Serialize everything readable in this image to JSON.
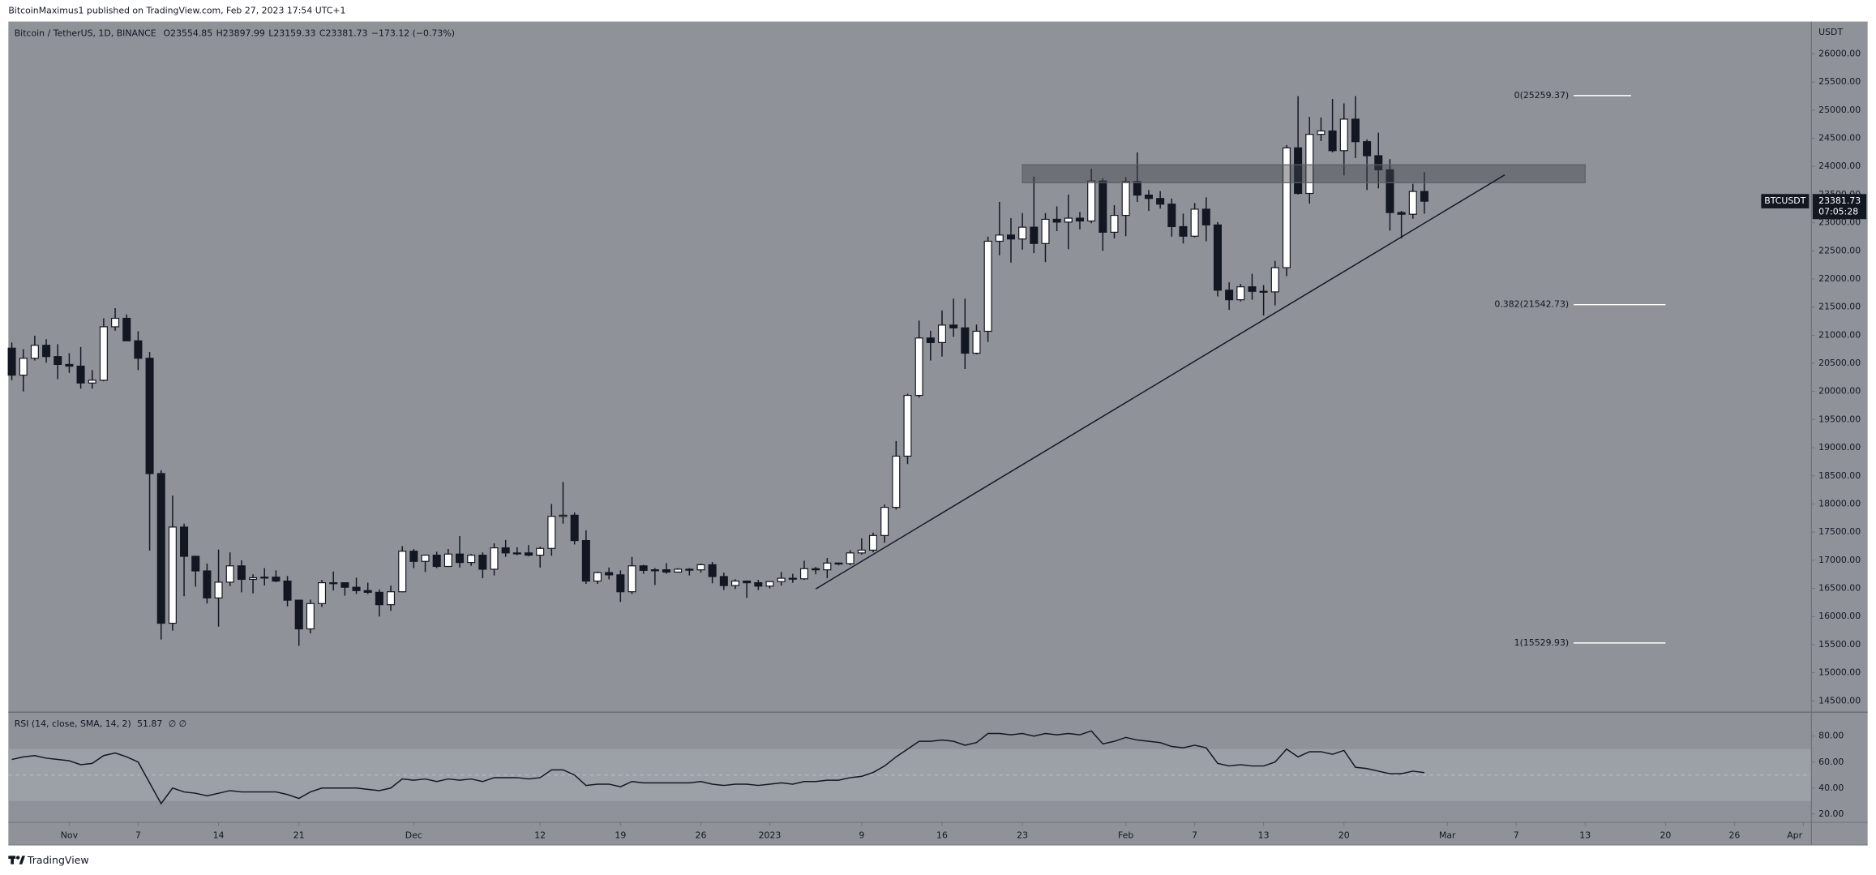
{
  "publish_line": "BitcoinMaximus1 published on TradingView.com, Feb 27, 2023 17:54 UTC+1",
  "footer_brand": "TradingView",
  "chart_data": [
    {
      "type": "candlestick",
      "title": "Bitcoin / TetherUS, 1D, BINANCE",
      "ohlc_labels": [
        "O",
        "H",
        "L",
        "C"
      ],
      "change_label": "−173.12 (−0.73%)",
      "symbol": "BTCUSDT",
      "countdown": "07:05:28",
      "y_axis_label": "USDT",
      "up_color": "#ffffff",
      "down_color": "#131722",
      "open": [
        20770,
        20290,
        20590,
        20820,
        20620,
        20480,
        20450,
        20150,
        20200,
        21150,
        21300,
        20900,
        20590,
        18540,
        15880,
        17590,
        17070,
        16810,
        16330,
        16610,
        16900,
        16660,
        16690,
        16700,
        16630,
        16290,
        15780,
        16230,
        16600,
        16600,
        16520,
        16460,
        16430,
        16210,
        16440,
        17160,
        16980,
        17090,
        16890,
        17110,
        16960,
        17090,
        16840,
        17220,
        17130,
        17130,
        17090,
        17210,
        17780,
        17800,
        17350,
        16630,
        16780,
        16740,
        16440,
        16900,
        16820,
        16830,
        16790,
        16840,
        16830,
        16920,
        16710,
        16550,
        16630,
        16600,
        16540,
        16620,
        16680,
        16670,
        16850,
        16830,
        16950,
        16940,
        17130,
        17180,
        17440,
        17940,
        18850,
        19930,
        20950,
        20870,
        21180,
        21130,
        20680,
        21070,
        22670,
        22780,
        22710,
        22920,
        22630,
        23060,
        23010,
        23080,
        23030,
        23740,
        22830,
        23130,
        23730,
        23490,
        23430,
        23330,
        22930,
        22760,
        23240,
        22960,
        21800,
        21630,
        21860,
        21780,
        21770,
        22200,
        24330,
        23520,
        24570,
        24630,
        24280,
        24840,
        24440,
        24190,
        23940,
        23180,
        23150,
        23554.85
      ],
      "high": [
        20870,
        20750,
        20990,
        20930,
        20840,
        20680,
        20790,
        20380,
        21300,
        21480,
        21370,
        21070,
        20700,
        18600,
        18150,
        17650,
        17080,
        16940,
        17190,
        17140,
        17000,
        16750,
        16860,
        16820,
        16720,
        16300,
        16300,
        16650,
        16800,
        16600,
        16690,
        16600,
        16480,
        16550,
        17250,
        17200,
        17100,
        17150,
        17200,
        17430,
        17110,
        17140,
        17300,
        17360,
        17230,
        17270,
        17240,
        18000,
        18390,
        17850,
        17530,
        16800,
        16870,
        16820,
        17060,
        16920,
        16860,
        16950,
        16860,
        16860,
        16940,
        16970,
        16780,
        16660,
        16640,
        16650,
        16630,
        16790,
        16760,
        16990,
        16880,
        17040,
        16960,
        17180,
        17390,
        17490,
        17990,
        19120,
        19960,
        21260,
        21080,
        21440,
        21650,
        21650,
        21190,
        22750,
        23370,
        23080,
        23170,
        23820,
        23170,
        23290,
        23500,
        23190,
        23960,
        23790,
        23310,
        23810,
        24250,
        23580,
        23560,
        23430,
        23160,
        23350,
        23450,
        23010,
        21940,
        21910,
        22090,
        21890,
        22320,
        24380,
        25250,
        24880,
        24870,
        25200,
        25120,
        25250,
        24480,
        24600,
        24130,
        23210,
        23690,
        23897.99
      ],
      "low": [
        20200,
        20000,
        20550,
        20510,
        20220,
        20330,
        20050,
        20050,
        20180,
        21080,
        20900,
        20380,
        17170,
        15590,
        15750,
        16360,
        16530,
        16230,
        15820,
        16540,
        16430,
        16410,
        16550,
        16610,
        16180,
        15480,
        15700,
        16170,
        16460,
        16370,
        16400,
        16400,
        16000,
        16100,
        16430,
        16860,
        16790,
        16860,
        16880,
        16870,
        16900,
        16680,
        16730,
        17060,
        17090,
        17070,
        16870,
        17080,
        17650,
        17280,
        16580,
        16580,
        16660,
        16260,
        16400,
        16760,
        16560,
        16760,
        16790,
        16730,
        16780,
        16590,
        16470,
        16490,
        16330,
        16470,
        16500,
        16550,
        16600,
        16650,
        16750,
        16680,
        16910,
        16910,
        17100,
        17140,
        17310,
        17900,
        18710,
        19890,
        20550,
        20620,
        20970,
        20400,
        20660,
        20880,
        22420,
        22290,
        22520,
        22460,
        22300,
        22850,
        22530,
        22880,
        22990,
        22500,
        22720,
        22760,
        23370,
        23210,
        23250,
        22750,
        22630,
        22740,
        22670,
        21690,
        21450,
        21600,
        21630,
        21350,
        21530,
        22050,
        23500,
        23340,
        24450,
        24250,
        23840,
        24150,
        23580,
        23610,
        22860,
        22720,
        23070,
        23159.33
      ],
      "close": [
        20290,
        20590,
        20820,
        20620,
        20480,
        20450,
        20150,
        20200,
        21150,
        21300,
        20900,
        20590,
        18540,
        15880,
        17590,
        17070,
        16810,
        16330,
        16610,
        16900,
        16660,
        16690,
        16700,
        16630,
        16290,
        15780,
        16230,
        16600,
        16600,
        16520,
        16460,
        16430,
        16210,
        16440,
        17160,
        16980,
        17090,
        16890,
        17110,
        16960,
        17090,
        16840,
        17220,
        17130,
        17130,
        17090,
        17210,
        17780,
        17800,
        17350,
        16630,
        16780,
        16740,
        16440,
        16900,
        16820,
        16830,
        16790,
        16840,
        16830,
        16920,
        16710,
        16550,
        16630,
        16600,
        16540,
        16620,
        16680,
        16670,
        16850,
        16830,
        16950,
        16940,
        17130,
        17180,
        17440,
        17940,
        18850,
        19930,
        20950,
        20870,
        21180,
        21130,
        20680,
        21070,
        22670,
        22780,
        22710,
        22920,
        22630,
        23060,
        23010,
        23080,
        23030,
        23740,
        22830,
        23130,
        23730,
        23490,
        23430,
        23330,
        22930,
        22760,
        23240,
        22960,
        21800,
        21630,
        21860,
        21780,
        21770,
        22200,
        24330,
        23520,
        24570,
        24630,
        24280,
        24840,
        24440,
        24190,
        23940,
        23180,
        23150,
        23554.85,
        23381.73
      ],
      "xlim": [
        -0.3,
        156.7
      ],
      "xticks": [
        {
          "value": 5,
          "label": "Nov"
        },
        {
          "value": 11,
          "label": "7"
        },
        {
          "value": 18,
          "label": "14"
        },
        {
          "value": 25,
          "label": "21"
        },
        {
          "value": 35,
          "label": "Dec"
        },
        {
          "value": 46,
          "label": "12"
        },
        {
          "value": 53,
          "label": "19"
        },
        {
          "value": 60,
          "label": "26"
        },
        {
          "value": 66,
          "label": "2023"
        },
        {
          "value": 74,
          "label": "9"
        },
        {
          "value": 81,
          "label": "16"
        },
        {
          "value": 88,
          "label": "23"
        },
        {
          "value": 97,
          "label": "Feb"
        },
        {
          "value": 103,
          "label": "7"
        },
        {
          "value": 109,
          "label": "13"
        },
        {
          "value": 116,
          "label": "20"
        },
        {
          "value": 125,
          "label": "Mar"
        },
        {
          "value": 131,
          "label": "7"
        },
        {
          "value": 137,
          "label": "13"
        },
        {
          "value": 144,
          "label": "20"
        },
        {
          "value": 150,
          "label": "26"
        },
        {
          "value": 156,
          "label": "Apr"
        }
      ],
      "ylim": [
        14320,
        26575
      ],
      "yticks": [
        {
          "value": 14500,
          "label": "14500.00"
        },
        {
          "value": 15000,
          "label": "15000.00"
        },
        {
          "value": 15500,
          "label": "15500.00"
        },
        {
          "value": 16000,
          "label": "16000.00"
        },
        {
          "value": 16500,
          "label": "16500.00"
        },
        {
          "value": 17000,
          "label": "17000.00"
        },
        {
          "value": 17500,
          "label": "17500.00"
        },
        {
          "value": 18000,
          "label": "18000.00"
        },
        {
          "value": 18500,
          "label": "18500.00"
        },
        {
          "value": 19000,
          "label": "19000.00"
        },
        {
          "value": 19500,
          "label": "19500.00"
        },
        {
          "value": 20000,
          "label": "20000.00"
        },
        {
          "value": 20500,
          "label": "20500.00"
        },
        {
          "value": 21000,
          "label": "21000.00"
        },
        {
          "value": 21500,
          "label": "21500.00"
        },
        {
          "value": 22000,
          "label": "22000.00"
        },
        {
          "value": 22500,
          "label": "22500.00"
        },
        {
          "value": 23000,
          "label": "23000.00"
        },
        {
          "value": 23500,
          "label": "23500.00"
        },
        {
          "value": 24000,
          "label": "24000.00"
        },
        {
          "value": 24500,
          "label": "24500.00"
        },
        {
          "value": 25000,
          "label": "25000.00"
        },
        {
          "value": 25500,
          "label": "25500.00"
        },
        {
          "value": 26000,
          "label": "26000.00"
        }
      ],
      "resistance_zone": {
        "x": [
          88,
          137
        ],
        "y": [
          23710,
          24030
        ]
      },
      "trendline": {
        "x": [
          70,
          130
        ],
        "y": [
          16490,
          23850
        ]
      },
      "fib_levels": [
        {
          "label": "0(25259.37)",
          "value": 25259.37,
          "x": [
            136,
            141
          ]
        },
        {
          "label": "0.382(21542.73)",
          "value": 21542.73,
          "x": [
            136,
            144
          ]
        },
        {
          "label": "1(15529.93)",
          "value": 15529.93,
          "x": [
            136,
            144
          ]
        }
      ]
    },
    {
      "type": "line",
      "title": "RSI (14, close, SMA, 14, 2)",
      "na_label": "∅ ∅",
      "color": "#131722",
      "values": [
        62,
        64,
        65,
        63,
        62,
        61,
        58,
        59,
        65,
        67,
        64,
        60,
        44,
        28,
        40,
        37,
        36,
        34,
        36,
        38,
        37,
        37,
        37,
        37,
        35,
        32,
        37,
        40,
        40,
        40,
        40,
        39,
        38,
        40,
        47,
        46,
        47,
        45,
        47,
        46,
        47,
        45,
        48,
        48,
        48,
        47,
        48,
        54,
        54,
        50,
        42,
        43,
        43,
        41,
        45,
        44,
        44,
        44,
        44,
        44,
        45,
        43,
        42,
        43,
        43,
        42,
        43,
        44,
        43,
        45,
        45,
        46,
        46,
        48,
        49,
        52,
        57,
        64,
        70,
        76,
        76,
        77,
        76,
        73,
        75,
        82,
        82,
        81,
        82,
        80,
        82,
        81,
        82,
        81,
        84,
        74,
        76,
        79,
        77,
        76,
        75,
        72,
        71,
        73,
        71,
        59,
        57,
        58,
        57,
        57,
        60,
        70,
        64,
        68,
        68,
        66,
        69,
        56,
        55,
        53,
        51,
        51,
        53,
        51.87
      ],
      "ylim": [
        14.5,
        97.5
      ],
      "yticks": [
        {
          "value": 20,
          "label": "20.00"
        },
        {
          "value": 40,
          "label": "40.00"
        },
        {
          "value": 60,
          "label": "60.00"
        },
        {
          "value": 80,
          "label": "80.00"
        }
      ],
      "band": [
        30,
        70
      ],
      "midline": 50
    }
  ]
}
